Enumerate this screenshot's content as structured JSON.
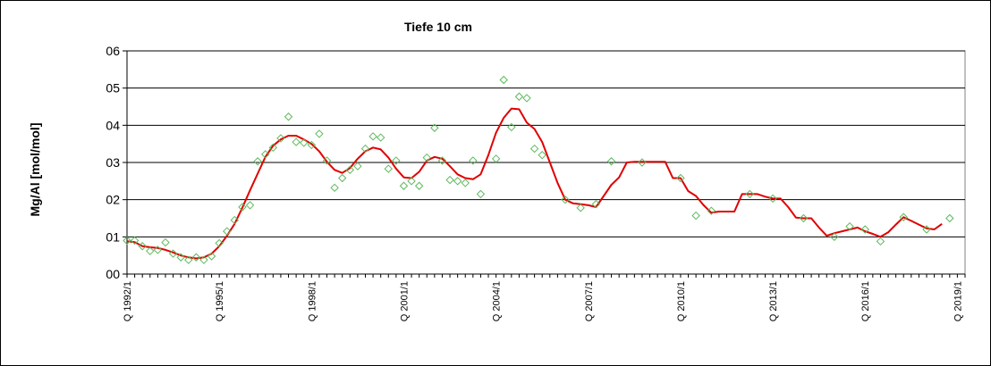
{
  "chart_data": {
    "type": "line",
    "title": "Tiefe  10 cm",
    "xlabel": "",
    "ylabel": "Mg/Al [mol/mol]",
    "x_axis": {
      "min": 0,
      "max": 109,
      "tick_labels": [
        {
          "q": 0,
          "label": "Q 1992/1"
        },
        {
          "q": 12,
          "label": "Q 1995/1"
        },
        {
          "q": 24,
          "label": "Q 1998/1"
        },
        {
          "q": 36,
          "label": "Q 2001/1"
        },
        {
          "q": 48,
          "label": "Q 2004/1"
        },
        {
          "q": 60,
          "label": "Q 2007/1"
        },
        {
          "q": 72,
          "label": "Q 2010/1"
        },
        {
          "q": 84,
          "label": "Q 2013/1"
        },
        {
          "q": 96,
          "label": "Q 2016/1"
        },
        {
          "q": 108,
          "label": "Q 2019/1"
        }
      ]
    },
    "y_axis": {
      "min": 0,
      "max": 0.6,
      "ticks": [
        {
          "value": 0.0,
          "label": "00"
        },
        {
          "value": 0.1,
          "label": "01"
        },
        {
          "value": 0.2,
          "label": "02"
        },
        {
          "value": 0.3,
          "label": "03"
        },
        {
          "value": 0.4,
          "label": "04"
        },
        {
          "value": 0.5,
          "label": "05"
        },
        {
          "value": 0.6,
          "label": "06"
        }
      ]
    },
    "grid": "horizontal",
    "colors": {
      "points": "#5cb85c",
      "line": "#e00000",
      "plot_background": "#ffffff",
      "gridline": "#000000"
    },
    "series": [
      {
        "type": "scatter",
        "marker": "diamond",
        "points": [
          [
            0,
            0.09
          ],
          [
            1,
            0.09
          ],
          [
            2,
            0.075
          ],
          [
            3,
            0.062
          ],
          [
            4,
            0.065
          ],
          [
            5,
            0.085
          ],
          [
            6,
            0.055
          ],
          [
            7,
            0.045
          ],
          [
            8,
            0.038
          ],
          [
            9,
            0.045
          ],
          [
            10,
            0.038
          ],
          [
            11,
            0.048
          ],
          [
            12,
            0.083
          ],
          [
            13,
            0.115
          ],
          [
            14,
            0.145
          ],
          [
            15,
            0.18
          ],
          [
            16,
            0.185
          ],
          [
            17,
            0.303
          ],
          [
            18,
            0.322
          ],
          [
            19,
            0.34
          ],
          [
            20,
            0.365
          ],
          [
            21,
            0.423
          ],
          [
            22,
            0.355
          ],
          [
            23,
            0.353
          ],
          [
            24,
            0.347
          ],
          [
            25,
            0.377
          ],
          [
            26,
            0.305
          ],
          [
            27,
            0.232
          ],
          [
            28,
            0.258
          ],
          [
            29,
            0.28
          ],
          [
            30,
            0.29
          ],
          [
            31,
            0.337
          ],
          [
            32,
            0.37
          ],
          [
            33,
            0.367
          ],
          [
            34,
            0.283
          ],
          [
            35,
            0.305
          ],
          [
            36,
            0.237
          ],
          [
            37,
            0.25
          ],
          [
            38,
            0.237
          ],
          [
            39,
            0.313
          ],
          [
            40,
            0.393
          ],
          [
            41,
            0.305
          ],
          [
            42,
            0.253
          ],
          [
            43,
            0.25
          ],
          [
            44,
            0.245
          ],
          [
            45,
            0.305
          ],
          [
            46,
            0.215
          ],
          [
            48,
            0.31
          ],
          [
            49,
            0.522
          ],
          [
            50,
            0.395
          ],
          [
            51,
            0.477
          ],
          [
            52,
            0.473
          ],
          [
            53,
            0.337
          ],
          [
            54,
            0.32
          ],
          [
            57,
            0.2
          ],
          [
            59,
            0.178
          ],
          [
            61,
            0.188
          ],
          [
            63,
            0.303
          ],
          [
            67,
            0.3
          ],
          [
            72,
            0.258
          ],
          [
            74,
            0.157
          ],
          [
            76,
            0.17
          ],
          [
            81,
            0.215
          ],
          [
            84,
            0.203
          ],
          [
            88,
            0.15
          ],
          [
            92,
            0.1
          ],
          [
            94,
            0.128
          ],
          [
            96,
            0.12
          ],
          [
            98,
            0.088
          ],
          [
            101,
            0.153
          ],
          [
            104,
            0.12
          ],
          [
            107,
            0.15
          ]
        ]
      },
      {
        "type": "line",
        "points": [
          [
            0,
            0.088
          ],
          [
            1,
            0.086
          ],
          [
            2,
            0.075
          ],
          [
            3,
            0.072
          ],
          [
            4,
            0.07
          ],
          [
            5,
            0.065
          ],
          [
            6,
            0.058
          ],
          [
            7,
            0.05
          ],
          [
            8,
            0.045
          ],
          [
            9,
            0.042
          ],
          [
            10,
            0.045
          ],
          [
            11,
            0.055
          ],
          [
            12,
            0.075
          ],
          [
            13,
            0.103
          ],
          [
            14,
            0.135
          ],
          [
            15,
            0.178
          ],
          [
            16,
            0.225
          ],
          [
            17,
            0.27
          ],
          [
            18,
            0.315
          ],
          [
            19,
            0.345
          ],
          [
            20,
            0.362
          ],
          [
            21,
            0.372
          ],
          [
            22,
            0.372
          ],
          [
            23,
            0.362
          ],
          [
            24,
            0.35
          ],
          [
            25,
            0.33
          ],
          [
            26,
            0.302
          ],
          [
            27,
            0.28
          ],
          [
            28,
            0.272
          ],
          [
            29,
            0.285
          ],
          [
            30,
            0.31
          ],
          [
            31,
            0.33
          ],
          [
            32,
            0.34
          ],
          [
            33,
            0.335
          ],
          [
            34,
            0.313
          ],
          [
            35,
            0.283
          ],
          [
            36,
            0.26
          ],
          [
            37,
            0.258
          ],
          [
            38,
            0.275
          ],
          [
            39,
            0.305
          ],
          [
            40,
            0.315
          ],
          [
            41,
            0.31
          ],
          [
            42,
            0.29
          ],
          [
            43,
            0.268
          ],
          [
            44,
            0.258
          ],
          [
            45,
            0.255
          ],
          [
            46,
            0.268
          ],
          [
            47,
            0.32
          ],
          [
            48,
            0.38
          ],
          [
            49,
            0.42
          ],
          [
            50,
            0.445
          ],
          [
            51,
            0.443
          ],
          [
            52,
            0.407
          ],
          [
            53,
            0.39
          ],
          [
            54,
            0.355
          ],
          [
            55,
            0.3
          ],
          [
            56,
            0.245
          ],
          [
            57,
            0.2
          ],
          [
            58,
            0.19
          ],
          [
            59,
            0.188
          ],
          [
            60,
            0.185
          ],
          [
            61,
            0.18
          ],
          [
            62,
            0.21
          ],
          [
            63,
            0.24
          ],
          [
            64,
            0.26
          ],
          [
            65,
            0.3
          ],
          [
            66,
            0.302
          ],
          [
            67,
            0.302
          ],
          [
            68,
            0.302
          ],
          [
            69,
            0.302
          ],
          [
            70,
            0.302
          ],
          [
            71,
            0.258
          ],
          [
            72,
            0.258
          ],
          [
            73,
            0.223
          ],
          [
            74,
            0.21
          ],
          [
            75,
            0.185
          ],
          [
            76,
            0.165
          ],
          [
            77,
            0.168
          ],
          [
            78,
            0.168
          ],
          [
            79,
            0.168
          ],
          [
            80,
            0.215
          ],
          [
            81,
            0.215
          ],
          [
            82,
            0.215
          ],
          [
            83,
            0.208
          ],
          [
            84,
            0.203
          ],
          [
            85,
            0.203
          ],
          [
            86,
            0.18
          ],
          [
            87,
            0.152
          ],
          [
            88,
            0.15
          ],
          [
            89,
            0.15
          ],
          [
            90,
            0.125
          ],
          [
            91,
            0.103
          ],
          [
            92,
            0.11
          ],
          [
            93,
            0.115
          ],
          [
            94,
            0.12
          ],
          [
            95,
            0.125
          ],
          [
            96,
            0.115
          ],
          [
            97,
            0.108
          ],
          [
            98,
            0.1
          ],
          [
            99,
            0.112
          ],
          [
            100,
            0.133
          ],
          [
            101,
            0.153
          ],
          [
            102,
            0.143
          ],
          [
            103,
            0.133
          ],
          [
            104,
            0.123
          ],
          [
            105,
            0.12
          ],
          [
            106,
            0.135
          ]
        ]
      }
    ]
  }
}
